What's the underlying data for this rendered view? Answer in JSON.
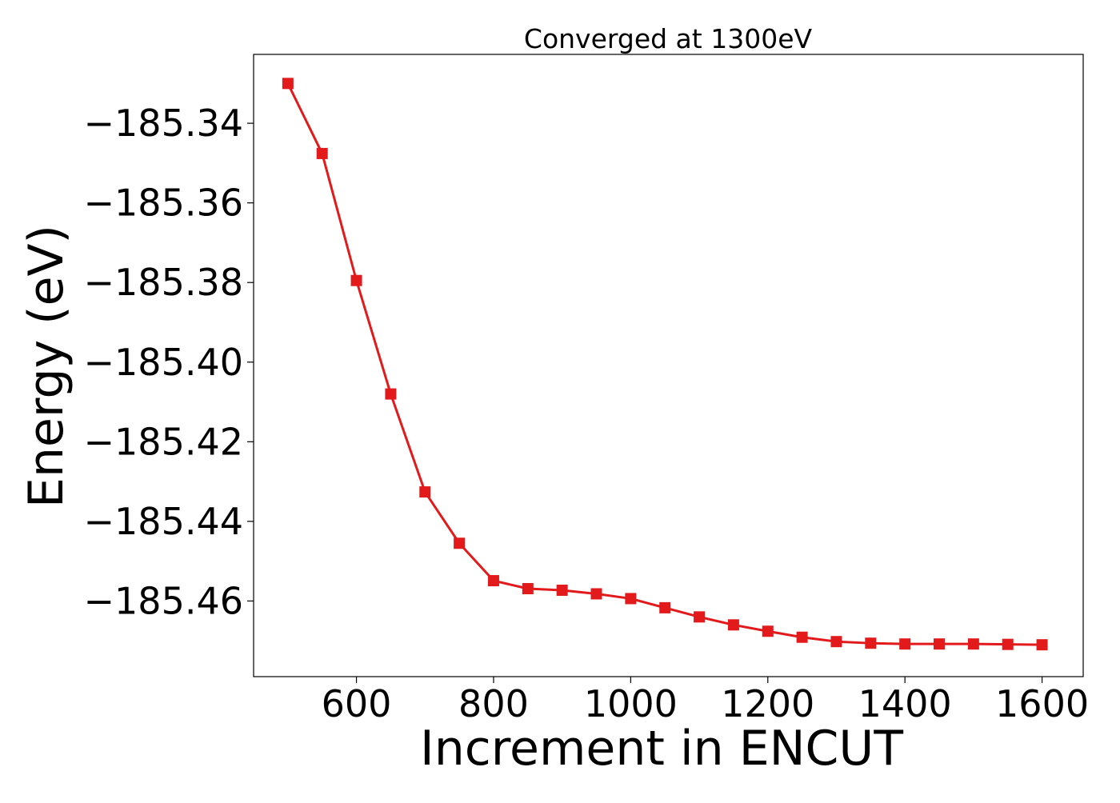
{
  "chart_data": {
    "type": "line",
    "title": "Converged at 1300eV",
    "xlabel": "Increment in ENCUT",
    "ylabel": "Energy (eV)",
    "xlim": [
      450,
      1660
    ],
    "ylim": [
      -185.479,
      -185.3227
    ],
    "xticks": [
      600,
      800,
      1000,
      1200,
      1400,
      1600
    ],
    "xtick_labels": [
      "600",
      "800",
      "1000",
      "1200",
      "1400",
      "1600"
    ],
    "yticks": [
      -185.34,
      -185.36,
      -185.38,
      -185.4,
      -185.42,
      -185.44,
      -185.46
    ],
    "ytick_labels": [
      "−185.34",
      "−185.36",
      "−185.38",
      "−185.40",
      "−185.42",
      "−185.44",
      "−185.46"
    ],
    "grid": false,
    "series": [
      {
        "marker": "square",
        "color": "#e31a1c",
        "x": [
          500,
          550,
          600,
          650,
          700,
          750,
          800,
          850,
          900,
          950,
          1000,
          1050,
          1100,
          1150,
          1200,
          1250,
          1300,
          1350,
          1400,
          1450,
          1500,
          1550,
          1600
        ],
        "y": [
          -185.33,
          -185.3476,
          -185.3795,
          -185.408,
          -185.4326,
          -185.4455,
          -185.4549,
          -185.4569,
          -185.4573,
          -185.4582,
          -185.4594,
          -185.4617,
          -185.464,
          -185.466,
          -185.4676,
          -185.4691,
          -185.4702,
          -185.4706,
          -185.4708,
          -185.4708,
          -185.4708,
          -185.4709,
          -185.471
        ]
      }
    ]
  }
}
